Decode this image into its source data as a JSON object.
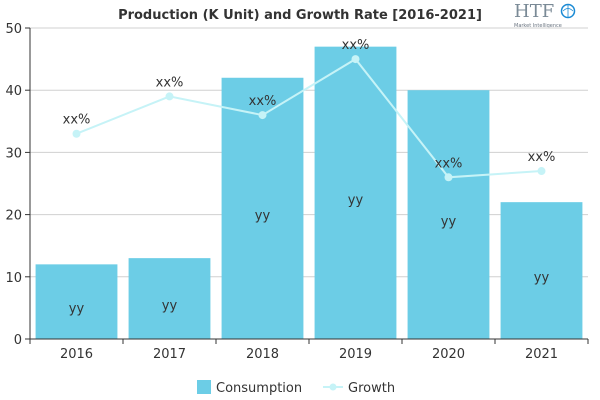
{
  "chart_data": {
    "type": "bar",
    "title": "Production (K Unit) and Growth Rate [2016-2021]",
    "categories": [
      "2016",
      "2017",
      "2018",
      "2019",
      "2020",
      "2021"
    ],
    "series": [
      {
        "name": "Consumption",
        "kind": "bar",
        "color": "#6ccde6",
        "values": [
          12,
          13,
          42,
          47,
          40,
          22
        ],
        "labels": [
          "yy",
          "yy",
          "yy",
          "yy",
          "yy",
          "yy"
        ]
      },
      {
        "name": "Growth",
        "kind": "line",
        "color": "#c6f3f7",
        "values": [
          33,
          39,
          36,
          45,
          26,
          27
        ],
        "labels": [
          "xx%",
          "xx%",
          "xx%",
          "xx%",
          "xx%",
          "xx%"
        ]
      }
    ],
    "ylim": [
      0,
      50
    ],
    "yticks": [
      0,
      10,
      20,
      30,
      40,
      50
    ],
    "grid": true,
    "legend_position": "bottom-center"
  },
  "logo": {
    "text": "HTF",
    "subtext": "Market Intelligence",
    "color": "#1a8ad4"
  }
}
